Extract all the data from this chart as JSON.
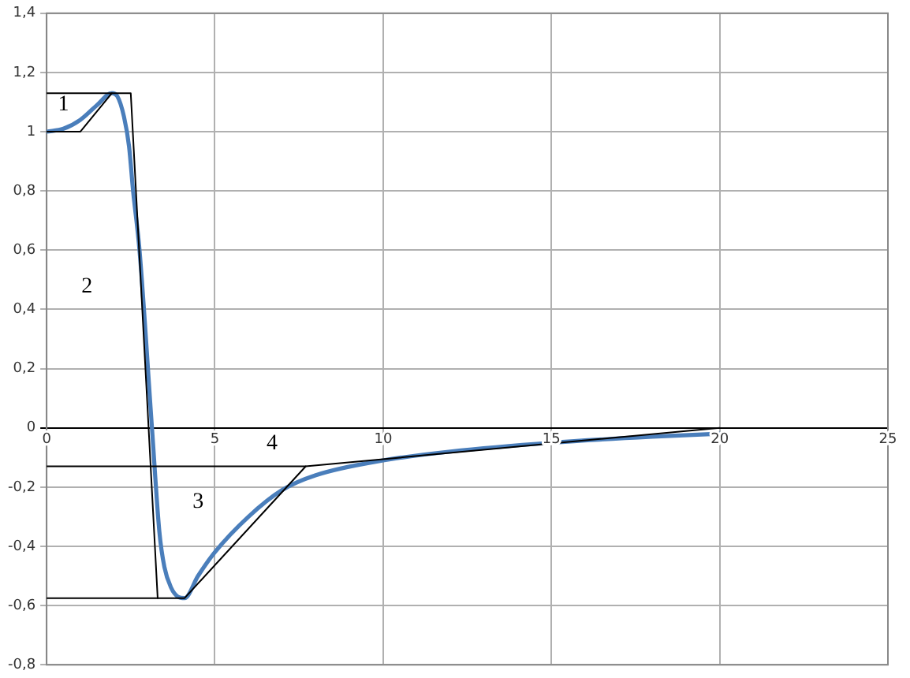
{
  "chart_data": {
    "type": "line",
    "xlim": [
      0,
      25
    ],
    "xticks": [
      0,
      5,
      10,
      15,
      20,
      25
    ],
    "ylim": [
      -0.8,
      1.4
    ],
    "yticks": [
      {
        "value": -0.8,
        "label": "-0,8"
      },
      {
        "value": -0.6,
        "label": "-0,6"
      },
      {
        "value": -0.4,
        "label": "-0,4"
      },
      {
        "value": -0.2,
        "label": "-0,2"
      },
      {
        "value": 0,
        "label": "0"
      },
      {
        "value": 0.2,
        "label": "0,2"
      },
      {
        "value": 0.4,
        "label": "0,4"
      },
      {
        "value": 0.6,
        "label": "0,6"
      },
      {
        "value": 0.8,
        "label": "0,8"
      },
      {
        "value": 1,
        "label": "1"
      },
      {
        "value": 1.2,
        "label": "1,2"
      },
      {
        "value": 1.4,
        "label": "1,4"
      }
    ],
    "grid": true,
    "legend": false,
    "marker": "none",
    "line_style": "solid",
    "series": [
      {
        "color": "#000000",
        "x": [
          0,
          2.5,
          3.3
        ],
        "values": [
          1.13,
          1.13,
          -0.575
        ]
      },
      {
        "color": "#000000",
        "x": [
          0,
          1,
          1.94
        ],
        "values": [
          1,
          1,
          1.13
        ]
      },
      {
        "color": "#000000",
        "x": [
          0,
          4.1,
          7.7,
          20
        ],
        "values": [
          -0.575,
          -0.575,
          -0.13,
          0
        ]
      },
      {
        "color": "#000000",
        "x": [
          0,
          7.7
        ],
        "values": [
          -0.13,
          -0.13
        ]
      },
      {
        "color": "#4a7ebb",
        "x": [
          0,
          0.5,
          1,
          1.5,
          1.94,
          2.1,
          2.3,
          2.45,
          2.57,
          2.76,
          3.13,
          3.35,
          3.5,
          3.7,
          3.9,
          4.1,
          4.5,
          5,
          6,
          7,
          8,
          10,
          12,
          15,
          18,
          20
        ],
        "values": [
          1,
          1.01,
          1.04,
          1.09,
          1.13,
          1.12,
          1.05,
          0.95,
          0.8,
          0.6,
          0,
          -0.35,
          -0.47,
          -0.54,
          -0.57,
          -0.575,
          -0.5,
          -0.42,
          -0.3,
          -0.21,
          -0.16,
          -0.11,
          -0.08,
          -0.05,
          -0.03,
          -0.02
        ]
      }
    ],
    "annotations": [
      "1",
      "2",
      "3",
      "4"
    ]
  }
}
